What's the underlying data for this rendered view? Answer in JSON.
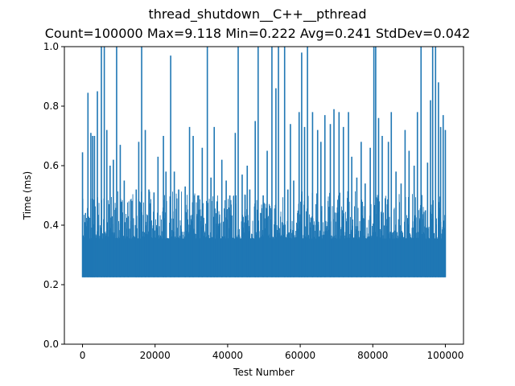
{
  "chart_data": {
    "type": "line",
    "title": "thread_shutdown__C++__pthread",
    "subtitle": "Count=100000 Max=9.118 Min=0.222 Avg=0.241 StdDev=0.042",
    "xlabel": "Test Number",
    "ylabel": "Time (ms)",
    "xlim": [
      -5000,
      105000
    ],
    "ylim": [
      0.0,
      1.0
    ],
    "xticks": [
      0,
      20000,
      40000,
      60000,
      80000,
      100000
    ],
    "yticks": [
      0.0,
      0.2,
      0.4,
      0.6,
      0.8,
      1.0
    ],
    "xtick_labels": [
      "0",
      "20000",
      "40000",
      "60000",
      "80000",
      "100000"
    ],
    "ytick_labels": [
      "0.0",
      "0.2",
      "0.4",
      "0.6",
      "0.8",
      "1.0"
    ],
    "grid": false,
    "legend": "none",
    "series": [
      {
        "color": "#1f77b4",
        "x_range": [
          0,
          100000
        ],
        "baseline": 0.225,
        "dense_band_top": 0.35,
        "spikes": [
          [
            0,
            0.645
          ],
          [
            600,
            0.41
          ],
          [
            1500,
            0.845
          ],
          [
            2300,
            0.71
          ],
          [
            2800,
            0.7
          ],
          [
            3300,
            0.7
          ],
          [
            4100,
            0.85
          ],
          [
            5200,
            1.0
          ],
          [
            6000,
            1.0
          ],
          [
            6700,
            0.72
          ],
          [
            7600,
            0.6
          ],
          [
            8500,
            0.62
          ],
          [
            9400,
            1.0
          ],
          [
            10400,
            0.67
          ],
          [
            11500,
            0.55
          ],
          [
            12600,
            0.43
          ],
          [
            14800,
            0.52
          ],
          [
            15500,
            0.68
          ],
          [
            16300,
            1.0
          ],
          [
            17300,
            0.72
          ],
          [
            18300,
            0.52
          ],
          [
            19700,
            0.51
          ],
          [
            20800,
            0.63
          ],
          [
            22300,
            0.7
          ],
          [
            23000,
            0.58
          ],
          [
            24300,
            0.97
          ],
          [
            25300,
            0.58
          ],
          [
            26500,
            0.52
          ],
          [
            28300,
            0.53
          ],
          [
            29500,
            0.73
          ],
          [
            30500,
            0.7
          ],
          [
            32000,
            0.5
          ],
          [
            33000,
            0.66
          ],
          [
            34400,
            1.0
          ],
          [
            35400,
            0.56
          ],
          [
            36300,
            0.73
          ],
          [
            37100,
            0.48
          ],
          [
            38400,
            0.62
          ],
          [
            39600,
            0.55
          ],
          [
            40600,
            0.5
          ],
          [
            42100,
            0.71
          ],
          [
            42900,
            1.0
          ],
          [
            44000,
            0.57
          ],
          [
            45400,
            0.6
          ],
          [
            46100,
            0.52
          ],
          [
            47600,
            0.75
          ],
          [
            48400,
            1.0
          ],
          [
            49800,
            0.5
          ],
          [
            50900,
            0.65
          ],
          [
            52200,
            1.0
          ],
          [
            53300,
            0.86
          ],
          [
            54000,
            1.0
          ],
          [
            55700,
            1.0
          ],
          [
            56600,
            0.52
          ],
          [
            57300,
            0.74
          ],
          [
            58200,
            0.55
          ],
          [
            59700,
            0.78
          ],
          [
            60400,
            0.98
          ],
          [
            61200,
            0.73
          ],
          [
            62000,
            1.0
          ],
          [
            63400,
            0.78
          ],
          [
            64800,
            0.72
          ],
          [
            65700,
            0.68
          ],
          [
            66800,
            0.77
          ],
          [
            68300,
            0.74
          ],
          [
            69300,
            0.79
          ],
          [
            70700,
            0.78
          ],
          [
            71900,
            0.73
          ],
          [
            73300,
            0.78
          ],
          [
            74200,
            0.63
          ],
          [
            75600,
            0.56
          ],
          [
            76800,
            0.68
          ],
          [
            77900,
            0.54
          ],
          [
            79300,
            0.66
          ],
          [
            80300,
            1.0
          ],
          [
            80800,
            1.0
          ],
          [
            81600,
            0.76
          ],
          [
            82600,
            0.7
          ],
          [
            84300,
            0.68
          ],
          [
            85100,
            0.78
          ],
          [
            86400,
            0.58
          ],
          [
            87800,
            0.54
          ],
          [
            88900,
            0.72
          ],
          [
            90000,
            0.65
          ],
          [
            91400,
            0.6
          ],
          [
            92300,
            0.78
          ],
          [
            93300,
            1.0
          ],
          [
            94500,
            0.45
          ],
          [
            95100,
            0.61
          ],
          [
            95900,
            0.82
          ],
          [
            96500,
            1.0
          ],
          [
            97300,
            1.0
          ],
          [
            98100,
            0.88
          ],
          [
            98700,
            0.73
          ],
          [
            99400,
            0.77
          ],
          [
            100000,
            0.72
          ]
        ]
      }
    ]
  }
}
